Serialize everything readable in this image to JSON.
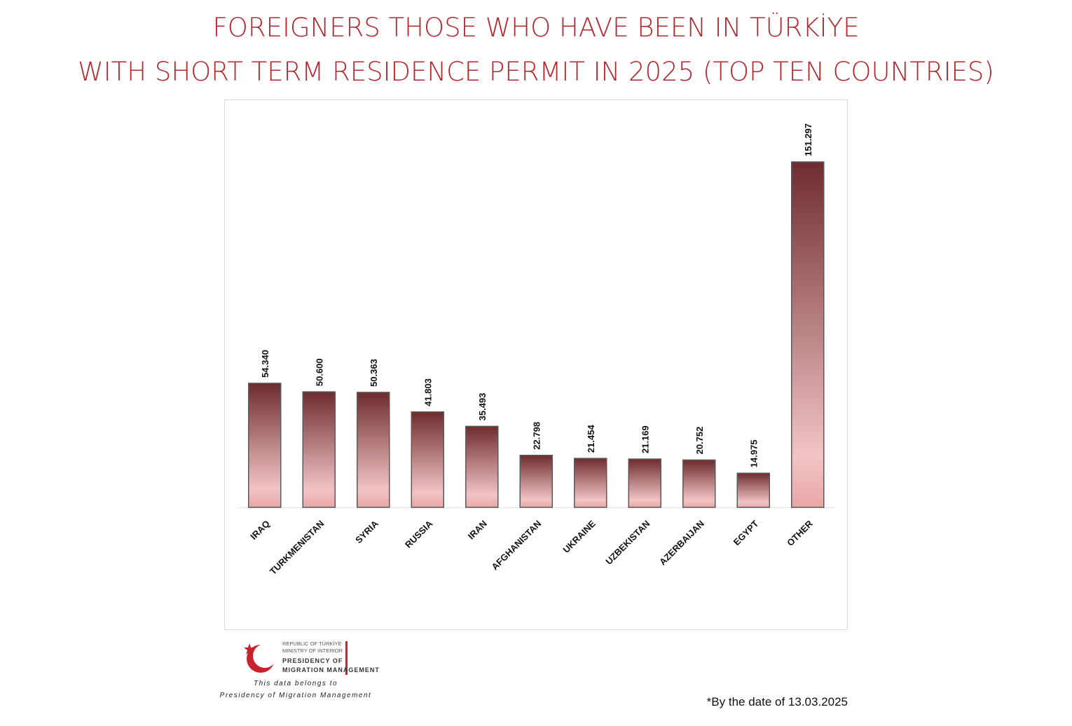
{
  "chart_data": {
    "type": "bar",
    "title": [
      "FOREIGNERS THOSE WHO HAVE BEEN IN TÜRKİYE",
      "WITH SHORT TERM RESIDENCE PERMIT IN 2025 (TOP TEN COUNTRIES)"
    ],
    "categories": [
      "IRAQ",
      "TURKMENISTAN",
      "SYRIA",
      "RUSSIA",
      "IRAN",
      "AFGHANISTAN",
      "UKRAINE",
      "UZBEKISTAN",
      "AZERBAIJAN",
      "EGYPT",
      "OTHER"
    ],
    "values": [
      54340,
      50600,
      50363,
      41803,
      35493,
      22798,
      21454,
      21169,
      20752,
      14975,
      151297
    ],
    "value_labels": [
      "54.340",
      "50.600",
      "50.363",
      "41.803",
      "35.493",
      "22.798",
      "21.454",
      "21.169",
      "20.752",
      "14.975",
      "151.297"
    ],
    "color": "#6e2c2e"
  },
  "logo": {
    "lines": [
      "REPUBLIC OF TÜRKİYE",
      "MINISTRY OF INTERIOR",
      "PRESIDENCY OF",
      "MIGRATION MANAGEMENT"
    ],
    "note": [
      "This data belongs to",
      "Presidency of Migration Management"
    ]
  },
  "footnote": "*By the date of 13.03.2025"
}
